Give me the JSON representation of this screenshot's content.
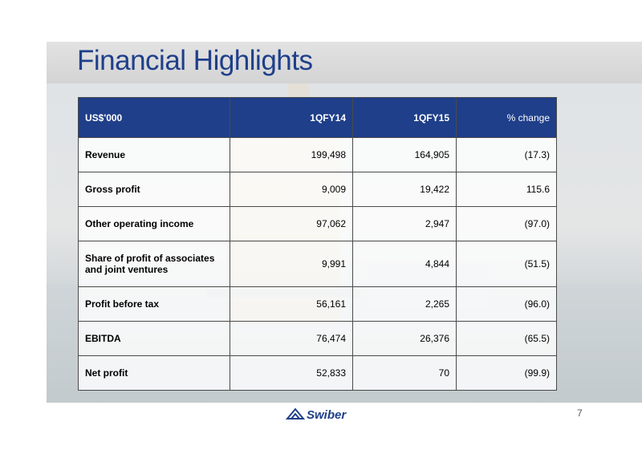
{
  "slide": {
    "title": "Financial Highlights",
    "page_number": "7",
    "logo_text": "Swiber"
  },
  "table": {
    "headers": [
      "US$'000",
      "1QFY14",
      "1QFY15",
      "% change"
    ],
    "rows": [
      {
        "label": "Revenue",
        "q14": "199,498",
        "q15": "164,905",
        "change": "(17.3)"
      },
      {
        "label": "Gross profit",
        "q14": "9,009",
        "q15": "19,422",
        "change": "115.6"
      },
      {
        "label": "Other operating income",
        "q14": "97,062",
        "q15": "2,947",
        "change": "(97.0)"
      },
      {
        "label": "Share of profit of associates and joint ventures",
        "q14": "9,991",
        "q15": "4,844",
        "change": "(51.5)"
      },
      {
        "label": "Profit before tax",
        "q14": "56,161",
        "q15": "2,265",
        "change": "(96.0)"
      },
      {
        "label": "EBITDA",
        "q14": "76,474",
        "q15": "26,376",
        "change": "(65.5)"
      },
      {
        "label": "Net profit",
        "q14": "52,833",
        "q15": "70",
        "change": "(99.9)"
      }
    ]
  }
}
